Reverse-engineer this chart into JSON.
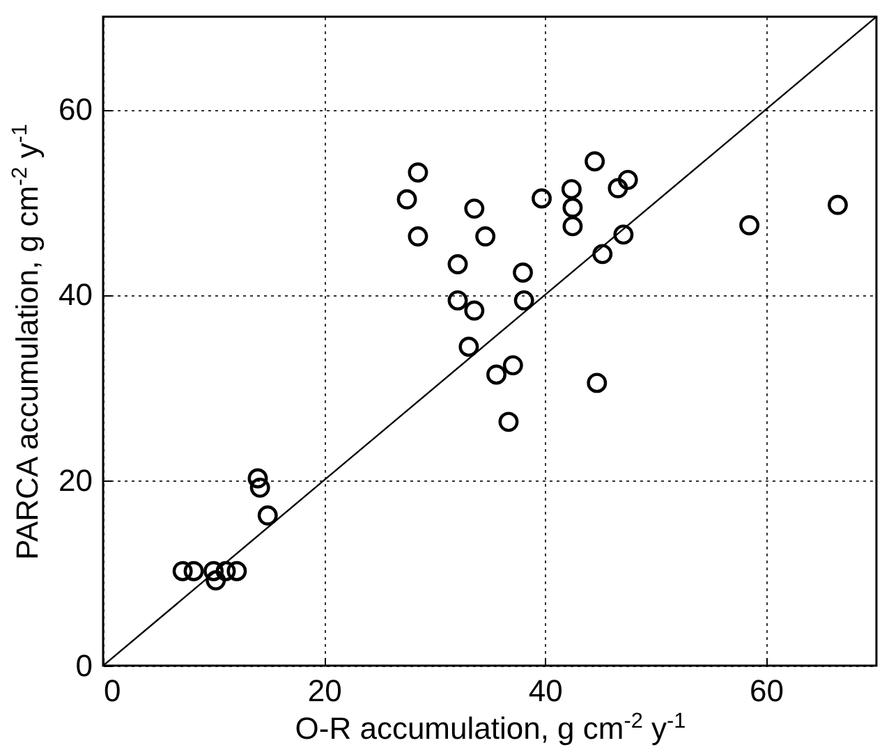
{
  "chart_data": {
    "type": "scatter",
    "xlabel": "O-R accumulation, g cm$^{-2}$ y$^{-1}$",
    "ylabel": "PARCA accumulation, g cm$^{-2}$ y$^{-1}$",
    "xlim": [
      0,
      70
    ],
    "ylim": [
      0,
      70
    ],
    "xticks": [
      0,
      20,
      40,
      60
    ],
    "yticks": [
      0,
      20,
      40,
      60
    ],
    "grid": true,
    "series": [
      {
        "type": "scatter",
        "color": "#000000",
        "marker": "circle",
        "x": [
          7.2,
          8.2,
          10.0,
          10.2,
          11.1,
          12.1,
          14.0,
          14.2,
          14.9,
          27.5,
          28.5,
          28.5,
          32.1,
          32.1,
          33.6,
          33.6,
          33.1,
          34.6,
          35.6,
          37.1,
          36.7,
          38.0,
          38.1,
          39.7,
          42.4,
          42.5,
          42.5,
          44.5,
          44.7,
          45.2,
          46.6,
          47.5,
          47.1,
          58.5,
          66.5
        ],
        "values": [
          10.2,
          10.2,
          10.2,
          9.2,
          10.2,
          10.2,
          20.2,
          19.2,
          16.2,
          50.3,
          53.2,
          46.3,
          43.3,
          39.4,
          49.3,
          38.3,
          34.4,
          46.3,
          31.4,
          32.4,
          26.3,
          42.4,
          39.4,
          50.4,
          51.4,
          49.4,
          47.4,
          54.4,
          30.5,
          44.4,
          51.5,
          52.4,
          46.5,
          47.5,
          49.7
        ]
      },
      {
        "type": "line",
        "color": "#000000",
        "line_style": "solid",
        "marker": "none",
        "x": [
          0,
          70
        ],
        "values": [
          0,
          70
        ]
      }
    ]
  }
}
